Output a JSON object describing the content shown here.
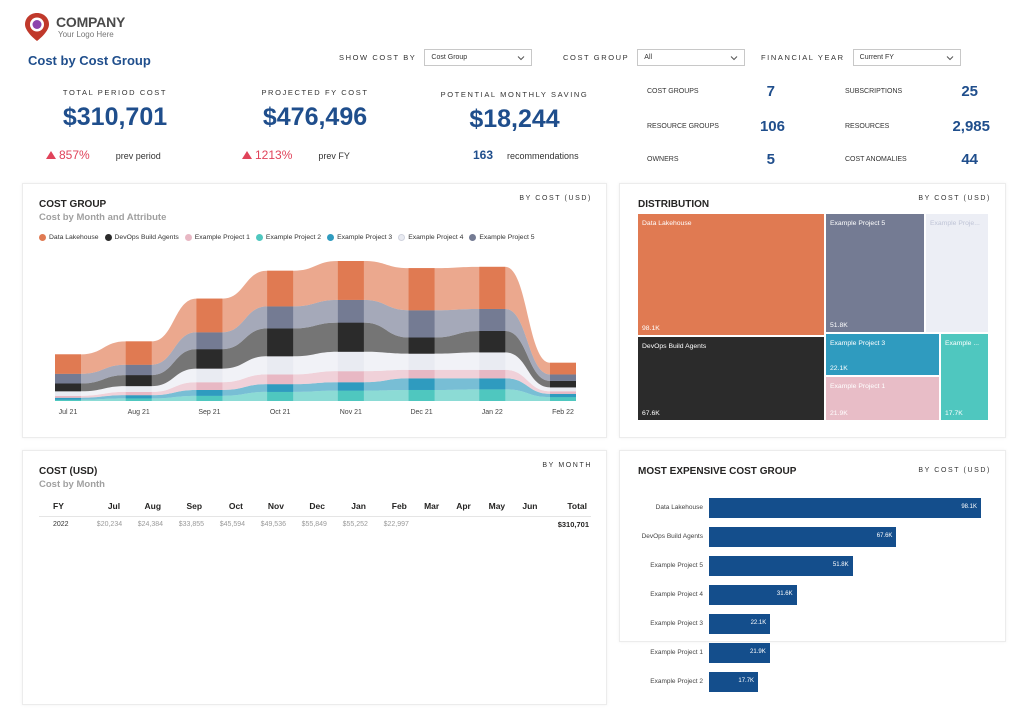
{
  "brand": {
    "name": "COMPANY",
    "tagline": "Your Logo Here"
  },
  "page_title": "Cost by Cost Group",
  "filters": [
    {
      "label": "SHOW COST BY",
      "value": "Cost Group"
    },
    {
      "label": "COST GROUP",
      "value": "All"
    },
    {
      "label": "FINANCIAL YEAR",
      "value": "Current FY"
    }
  ],
  "kpis": {
    "total": {
      "label": "TOTAL PERIOD COST",
      "value": "$310,701",
      "delta": "857%",
      "delta_label": "prev period"
    },
    "projected": {
      "label": "PROJECTED FY COST",
      "value": "$476,496",
      "delta": "1213%",
      "delta_label": "prev FY"
    },
    "saving": {
      "label": "POTENTIAL MONTHLY SAVING",
      "value": "$18,244",
      "count": "163",
      "count_label": "recommendations"
    }
  },
  "stats": [
    {
      "label": "COST GROUPS",
      "value": "7"
    },
    {
      "label": "SUBSCRIPTIONS",
      "value": "25"
    },
    {
      "label": "RESOURCE GROUPS",
      "value": "106"
    },
    {
      "label": "RESOURCES",
      "value": "2,985"
    },
    {
      "label": "OWNERS",
      "value": "5"
    },
    {
      "label": "COST ANOMALIES",
      "value": "44"
    }
  ],
  "ribbon_card": {
    "title": "COST GROUP",
    "subtitle": "Cost by Month and Attribute",
    "tag": "BY COST (USD)",
    "chart_data": {
      "type": "area",
      "categories": [
        "Jul 21",
        "Aug 21",
        "Sep 21",
        "Oct 21",
        "Nov 21",
        "Dec 21",
        "Jan 22",
        "Feb 22"
      ],
      "series": [
        {
          "name": "Data Lakehouse",
          "color": "#e07a52",
          "values": [
            3000,
            3600,
            5200,
            5500,
            6000,
            6500,
            6500,
            1800
          ]
        },
        {
          "name": "DevOps Build Agents",
          "color": "#2b2b2b",
          "values": [
            1200,
            1700,
            3000,
            4300,
            4500,
            2500,
            3300,
            1000
          ]
        },
        {
          "name": "Example Project 1",
          "color": "#e8b8c4",
          "values": [
            300,
            500,
            1200,
            1500,
            1700,
            1300,
            1300,
            400
          ]
        },
        {
          "name": "Example Project 2",
          "color": "#4fc7bf",
          "values": [
            200,
            400,
            800,
            1400,
            1600,
            1700,
            1800,
            600
          ]
        },
        {
          "name": "Example Project 3",
          "color": "#2f9bbf",
          "values": [
            300,
            500,
            900,
            1200,
            1300,
            1800,
            1700,
            500
          ]
        },
        {
          "name": "Example Project 4",
          "color": "#e9ebf2",
          "values": [
            700,
            900,
            2100,
            2800,
            3000,
            2500,
            2700,
            600
          ]
        },
        {
          "name": "Example Project 5",
          "color": "#747b93",
          "values": [
            1500,
            1600,
            2600,
            3400,
            3500,
            4200,
            3400,
            1000
          ]
        }
      ]
    }
  },
  "distribution": {
    "title": "DISTRIBUTION",
    "tag": "BY COST (USD)",
    "cells": [
      {
        "name": "Data Lakehouse",
        "value": "98.1K",
        "color": "#e07a52"
      },
      {
        "name": "Example Project 5",
        "value": "51.8K",
        "color": "#747b93"
      },
      {
        "name": "Example Proje...",
        "value": "",
        "color": "#eceef5"
      },
      {
        "name": "DevOps Build Agents",
        "value": "67.6K",
        "color": "#2b2b2b"
      },
      {
        "name": "Example Project 3",
        "value": "22.1K",
        "color": "#2f9bbf"
      },
      {
        "name": "Example ...",
        "value": "17.7K",
        "color": "#4fc7bf"
      },
      {
        "name": "Example Project 1",
        "value": "21.9K",
        "color": "#e8bdc7"
      }
    ]
  },
  "cost_table": {
    "title": "COST (USD)",
    "subtitle": "Cost by Month",
    "tag": "BY MONTH",
    "columns": [
      "FY",
      "Jul",
      "Aug",
      "Sep",
      "Oct",
      "Nov",
      "Dec",
      "Jan",
      "Feb",
      "Mar",
      "Apr",
      "May",
      "Jun",
      "Total"
    ],
    "rows": [
      [
        "2022",
        "$20,234",
        "$24,384",
        "$33,855",
        "$45,594",
        "$49,536",
        "$55,849",
        "$55,252",
        "$22,997",
        "",
        "",
        "",
        "",
        "$310,701"
      ]
    ]
  },
  "expensive_card": {
    "title": "MOST EXPENSIVE COST GROUP",
    "tag": "BY COST (USD)",
    "chart_data": {
      "type": "bar",
      "orientation": "horizontal",
      "categories": [
        "Data Lakehouse",
        "DevOps Build Agents",
        "Example Project 5",
        "Example Project 4",
        "Example Project 3",
        "Example Project 1",
        "Example Project 2"
      ],
      "values": [
        98.1,
        67.6,
        51.8,
        31.6,
        22.1,
        21.9,
        17.7
      ],
      "labels": [
        "98.1K",
        "67.6K",
        "51.8K",
        "31.6K",
        "22.1K",
        "21.9K",
        "17.7K"
      ],
      "color": "#144e8c"
    }
  }
}
